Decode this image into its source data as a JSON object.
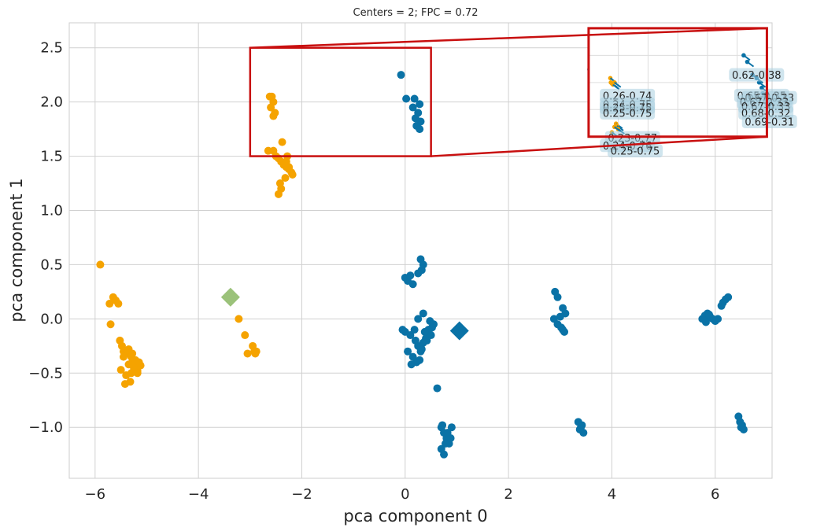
{
  "chart_data": {
    "type": "scatter",
    "title": "Centers = 2; FPC = 0.72",
    "xlabel": "pca component 0",
    "ylabel": "pca component 1",
    "xlim": [
      -6.5,
      7.1
    ],
    "ylim": [
      -1.47,
      2.73
    ],
    "xticks": [
      -6,
      -4,
      -2,
      0,
      2,
      4,
      6
    ],
    "yticks": [
      -1.0,
      -0.5,
      0.0,
      0.5,
      1.0,
      1.5,
      2.0,
      2.5
    ],
    "xtick_labels": [
      "−6",
      "−4",
      "−2",
      "0",
      "2",
      "4",
      "6"
    ],
    "ytick_labels": [
      "−1.0",
      "−0.5",
      "0.0",
      "0.5",
      "1.0",
      "1.5",
      "2.0",
      "2.5"
    ],
    "grid": true,
    "colors": {
      "cluster_0": "#f5a300",
      "cluster_1": "#0a72a6",
      "center_0": "#9bc27a",
      "center_1": "#0a72a6",
      "zoom_box": "#c80f0f"
    },
    "series": [
      {
        "color_key": "cluster_0",
        "x": [
          -5.9,
          -5.72,
          -5.65,
          -5.6,
          -5.55,
          -5.7,
          -5.52,
          -5.48,
          -5.45,
          -5.4,
          -5.35,
          -5.3,
          -5.28,
          -5.25,
          -5.22,
          -5.2,
          -5.18,
          -5.15,
          -5.12,
          -5.45,
          -5.4,
          -5.3,
          -5.5,
          -5.25,
          -5.22,
          -5.18,
          -5.35,
          -5.28,
          -5.42,
          -5.32,
          -2.62,
          -2.58,
          -2.55,
          -2.6,
          -2.52,
          -2.55,
          -2.65,
          -2.55,
          -2.5,
          -2.45,
          -2.4,
          -2.35,
          -2.3,
          -2.25,
          -2.2,
          -2.18,
          -2.38,
          -2.28,
          -2.32,
          -2.42,
          -2.45,
          -2.4,
          -2.3,
          -2.25,
          -3.22,
          -3.1,
          -2.95,
          -2.92,
          -3.05,
          -2.9,
          -2.88
        ],
        "y": [
          0.5,
          0.14,
          0.2,
          0.17,
          0.14,
          -0.05,
          -0.2,
          -0.25,
          -0.3,
          -0.32,
          -0.28,
          -0.35,
          -0.4,
          -0.38,
          -0.42,
          -0.45,
          -0.48,
          -0.4,
          -0.43,
          -0.35,
          -0.52,
          -0.5,
          -0.47,
          -0.45,
          -0.38,
          -0.5,
          -0.42,
          -0.32,
          -0.6,
          -0.58,
          2.05,
          2.05,
          2.0,
          1.95,
          1.9,
          1.87,
          1.55,
          1.55,
          1.5,
          1.48,
          1.45,
          1.42,
          1.4,
          1.38,
          1.35,
          1.33,
          1.63,
          1.5,
          1.3,
          1.25,
          1.15,
          1.2,
          1.45,
          1.4,
          0.0,
          -0.15,
          -0.25,
          -0.3,
          -0.32,
          -0.32,
          -0.3
        ]
      },
      {
        "color_key": "cluster_1",
        "x": [
          -0.08,
          0.02,
          0.18,
          0.28,
          0.15,
          0.25,
          0.2,
          0.3,
          0.22,
          0.28,
          0.0,
          0.05,
          0.1,
          0.15,
          0.3,
          0.35,
          0.32,
          0.25,
          -0.05,
          0.0,
          0.1,
          0.2,
          0.25,
          0.3,
          0.35,
          0.4,
          0.45,
          0.5,
          0.55,
          0.15,
          0.22,
          0.28,
          0.32,
          0.38,
          0.42,
          0.05,
          0.12,
          0.18,
          0.25,
          0.35,
          0.48,
          0.52,
          0.62,
          0.7,
          0.75,
          0.8,
          0.85,
          0.9,
          0.7,
          0.75,
          0.82,
          0.88,
          0.72,
          0.78,
          0.55,
          2.9,
          2.95,
          3.05,
          3.1,
          2.88,
          2.95,
          3.02,
          3.08,
          3.0,
          3.05,
          3.35,
          3.4,
          3.45,
          3.38,
          3.42,
          5.75,
          5.8,
          5.85,
          5.9,
          5.95,
          6.0,
          6.05,
          5.82,
          5.88,
          6.15,
          6.2,
          6.25,
          6.12,
          6.45,
          6.48,
          6.5,
          6.52,
          6.55,
          3.6,
          3.62,
          3.65,
          3.68,
          3.7,
          3.72,
          3.75,
          3.8,
          6.5,
          6.55,
          6.58,
          6.62
        ],
        "y": [
          2.25,
          2.03,
          2.03,
          1.98,
          1.95,
          1.9,
          1.85,
          1.82,
          1.78,
          1.75,
          0.38,
          0.35,
          0.4,
          0.32,
          0.55,
          0.5,
          0.45,
          0.42,
          -0.1,
          -0.12,
          -0.15,
          -0.2,
          -0.25,
          -0.3,
          -0.22,
          -0.18,
          -0.1,
          -0.15,
          -0.05,
          -0.35,
          -0.4,
          -0.38,
          -0.28,
          -0.12,
          -0.2,
          -0.3,
          -0.42,
          -0.1,
          0.0,
          0.05,
          -0.02,
          -0.08,
          -0.64,
          -1.0,
          -1.05,
          -1.1,
          -1.15,
          -1.0,
          -1.2,
          -1.25,
          -1.05,
          -1.1,
          -0.98,
          -1.15,
          -0.05,
          0.25,
          0.2,
          0.1,
          0.05,
          0.0,
          -0.05,
          -0.08,
          -0.12,
          0.02,
          -0.1,
          -0.95,
          -1.0,
          -1.05,
          -1.02,
          -0.98,
          0.0,
          0.03,
          0.05,
          0.02,
          0.0,
          -0.02,
          0.0,
          -0.03,
          0.04,
          0.15,
          0.18,
          0.2,
          0.12,
          -0.9,
          -0.95,
          -1.0,
          -0.98,
          -1.02,
          2.3,
          2.35,
          2.4,
          2.33,
          2.38,
          2.42,
          2.37,
          2.35,
          2.45,
          2.4,
          2.35,
          2.42
        ]
      }
    ],
    "centers": [
      {
        "color_key": "center_0",
        "x": -3.38,
        "y": 0.2
      },
      {
        "color_key": "center_1",
        "x": 1.05,
        "y": -0.11
      }
    ],
    "zoom_source": {
      "x0": -3.0,
      "x1": 0.5,
      "y0": 1.5,
      "y1": 2.5
    },
    "zoom_inset": {
      "x0": 3.55,
      "x1": 7.0,
      "y0": 1.68,
      "y1": 2.68
    },
    "inset_points": {
      "x": [
        3.97,
        3.98,
        4.0,
        4.02,
        4.05,
        4.08,
        4.1,
        4.12,
        4.0,
        4.05,
        6.55,
        6.62,
        6.72,
        6.8,
        6.85,
        6.9,
        6.92,
        6.95,
        6.98,
        7.0
      ],
      "y": [
        2.22,
        2.18,
        2.17,
        2.16,
        2.18,
        1.8,
        1.78,
        1.75,
        1.72,
        1.77,
        2.43,
        2.37,
        2.25,
        2.22,
        2.18,
        2.13,
        2.08,
        2.05,
        2.02,
        1.98
      ]
    },
    "annotations": [
      {
        "text": "0.62-0.38",
        "x": 6.8,
        "y": 2.25
      },
      {
        "text": "0.26-0.74",
        "x": 4.3,
        "y": 2.06
      },
      {
        "text": "0.24-0.75",
        "x": 4.3,
        "y": 1.98
      },
      {
        "text": "0.25-0.75",
        "x": 4.3,
        "y": 1.95
      },
      {
        "text": "0.25-0.75",
        "x": 4.3,
        "y": 1.9
      },
      {
        "text": "0.65-0.35",
        "x": 6.9,
        "y": 2.06
      },
      {
        "text": "0.67-0.33",
        "x": 7.05,
        "y": 2.04
      },
      {
        "text": "0.67-0.33",
        "x": 6.95,
        "y": 2.0
      },
      {
        "text": "0.67-0.33",
        "x": 6.98,
        "y": 1.96
      },
      {
        "text": "0.68-0.32",
        "x": 6.98,
        "y": 1.9
      },
      {
        "text": "0.69-0.31",
        "x": 7.05,
        "y": 1.82
      },
      {
        "text": "0.23-0.77",
        "x": 4.4,
        "y": 1.67
      },
      {
        "text": "0.24-0.76",
        "x": 4.3,
        "y": 1.6
      },
      {
        "text": "0.25-0.75",
        "x": 4.45,
        "y": 1.55
      }
    ]
  }
}
